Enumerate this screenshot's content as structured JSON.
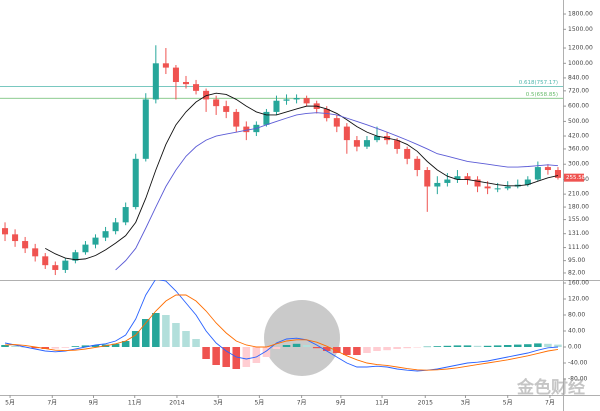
{
  "chart_data": [
    {
      "type": "candlestick",
      "open": [
        140,
        130,
        120,
        110,
        100,
        90,
        85,
        95,
        105,
        115,
        125,
        135,
        150,
        180,
        320,
        650,
        1000,
        950,
        800,
        780,
        720,
        650,
        600,
        560,
        470,
        440,
        480,
        560,
        640,
        650,
        660,
        620,
        580,
        520,
        470,
        400,
        370,
        400,
        420,
        400,
        360,
        320,
        280,
        230,
        240,
        250,
        260,
        250,
        230,
        225,
        225,
        230,
        235,
        250,
        290,
        280
      ],
      "high": [
        150,
        138,
        126,
        116,
        104,
        94,
        98,
        108,
        120,
        130,
        142,
        158,
        190,
        340,
        700,
        1240,
        1200,
        980,
        860,
        820,
        740,
        680,
        640,
        580,
        500,
        500,
        580,
        680,
        690,
        690,
        680,
        640,
        600,
        540,
        490,
        420,
        420,
        470,
        440,
        410,
        370,
        330,
        290,
        260,
        270,
        280,
        270,
        260,
        245,
        240,
        245,
        250,
        260,
        310,
        300,
        290
      ],
      "low": [
        120,
        112,
        104,
        94,
        86,
        80,
        82,
        92,
        102,
        110,
        120,
        130,
        145,
        175,
        310,
        620,
        880,
        650,
        740,
        690,
        560,
        540,
        520,
        440,
        400,
        420,
        470,
        540,
        610,
        620,
        600,
        550,
        500,
        440,
        340,
        350,
        360,
        390,
        380,
        340,
        300,
        260,
        170,
        210,
        230,
        240,
        235,
        215,
        210,
        215,
        220,
        225,
        230,
        245,
        265,
        250
      ],
      "close": [
        130,
        120,
        110,
        100,
        90,
        85,
        95,
        105,
        115,
        125,
        135,
        150,
        180,
        320,
        650,
        1000,
        950,
        800,
        780,
        720,
        650,
        600,
        560,
        470,
        440,
        480,
        560,
        640,
        650,
        660,
        620,
        580,
        520,
        470,
        400,
        370,
        400,
        420,
        400,
        360,
        320,
        280,
        230,
        240,
        250,
        260,
        250,
        230,
        225,
        225,
        230,
        235,
        250,
        290,
        280,
        255
      ],
      "up_color": "#26a69a",
      "down_color": "#ef5350",
      "series": [
        {
          "color": "#111111",
          "values": [
            null,
            null,
            null,
            null,
            110,
            103,
            98,
            96,
            97,
            101,
            108,
            117,
            128,
            150,
            200,
            280,
            380,
            480,
            560,
            630,
            680,
            700,
            690,
            650,
            600,
            560,
            540,
            540,
            560,
            580,
            600,
            600,
            580,
            550,
            510,
            470,
            440,
            420,
            410,
            400,
            380,
            350,
            310,
            280,
            260,
            250,
            250,
            245,
            240,
            235,
            232,
            232,
            235,
            245,
            255,
            262
          ]
        },
        {
          "color": "#5b5bd6",
          "values": [
            null,
            null,
            null,
            null,
            null,
            null,
            null,
            null,
            null,
            null,
            null,
            85,
            95,
            110,
            140,
            180,
            230,
            280,
            330,
            370,
            400,
            420,
            430,
            440,
            450,
            460,
            480,
            500,
            520,
            540,
            550,
            555,
            550,
            540,
            520,
            500,
            480,
            460,
            440,
            420,
            400,
            380,
            360,
            340,
            330,
            320,
            310,
            305,
            300,
            295,
            290,
            290,
            292,
            295,
            298,
            295
          ]
        }
      ],
      "levels": [
        {
          "label": "0.618(757.17)",
          "value": 757.17,
          "color": "#4db6ac"
        },
        {
          "label": "0.5(658.85)",
          "value": 658.85,
          "color": "#66bb6a"
        }
      ],
      "last_price": 255.58,
      "log_scale": true,
      "xlim": [
        -0.5,
        55.5
      ],
      "ylim": [
        75.4,
        2128
      ],
      "yticks": [
        {
          "value": 1800,
          "label": "1800.00"
        },
        {
          "value": 1500,
          "label": "1500.00"
        },
        {
          "value": 1200,
          "label": "1200.00"
        },
        {
          "value": 1000,
          "label": "1000.00"
        },
        {
          "value": 840,
          "label": "840.00"
        },
        {
          "value": 720,
          "label": "720.00"
        },
        {
          "value": 600,
          "label": "600.00"
        },
        {
          "value": 500,
          "label": "500.00"
        },
        {
          "value": 420,
          "label": "420.00"
        },
        {
          "value": 360,
          "label": "360.00"
        },
        {
          "value": 300,
          "label": "300.00"
        },
        {
          "value": 250,
          "label": "250.00"
        },
        {
          "value": 210,
          "label": "210.00"
        },
        {
          "value": 180,
          "label": "180.00"
        },
        {
          "value": 155,
          "label": "155.00"
        },
        {
          "value": 131,
          "label": "131.00"
        },
        {
          "value": 111,
          "label": "111.00"
        },
        {
          "value": 95,
          "label": "95.00"
        },
        {
          "value": 82,
          "label": "82.00"
        }
      ]
    },
    {
      "type": "macd",
      "histogram": [
        5,
        3,
        0,
        -3,
        -5,
        -4,
        -2,
        2,
        4,
        5,
        6,
        8,
        15,
        40,
        70,
        85,
        80,
        60,
        40,
        20,
        -30,
        -45,
        -50,
        -55,
        -50,
        -40,
        -25,
        -5,
        5,
        8,
        5,
        -3,
        -10,
        -15,
        -20,
        -20,
        -15,
        -10,
        -8,
        -5,
        -3,
        -1,
        1,
        2,
        3,
        4,
        4,
        3,
        3,
        4,
        5,
        6,
        7,
        9,
        8,
        6
      ],
      "series": [
        {
          "color": "#2962ff",
          "values": [
            10,
            5,
            0,
            -5,
            -10,
            -12,
            -10,
            -5,
            0,
            5,
            8,
            15,
            30,
            70,
            130,
            170,
            165,
            140,
            110,
            80,
            40,
            10,
            -10,
            -25,
            -30,
            -25,
            -10,
            10,
            20,
            22,
            18,
            5,
            -10,
            -25,
            -40,
            -50,
            -50,
            -48,
            -50,
            -55,
            -58,
            -60,
            -58,
            -55,
            -50,
            -45,
            -40,
            -38,
            -35,
            -30,
            -25,
            -20,
            -15,
            -8,
            -2,
            0
          ]
        },
        {
          "color": "#ff6d00",
          "values": [
            5,
            6,
            4,
            0,
            -4,
            -8,
            -9,
            -8,
            -5,
            -1,
            3,
            8,
            15,
            30,
            60,
            90,
            115,
            130,
            130,
            115,
            90,
            60,
            35,
            15,
            5,
            0,
            0,
            8,
            15,
            18,
            18,
            12,
            2,
            -10,
            -22,
            -32,
            -40,
            -44,
            -46,
            -50,
            -54,
            -57,
            -58,
            -57,
            -55,
            -52,
            -48,
            -44,
            -40,
            -36,
            -32,
            -27,
            -22,
            -16,
            -10,
            -6
          ]
        }
      ],
      "xlim": [
        -0.5,
        55.5
      ],
      "ylim": [
        -120,
        167.5
      ],
      "yticks": [
        {
          "value": 160,
          "label": "160.00"
        },
        {
          "value": 120,
          "label": "120.00"
        },
        {
          "value": 80,
          "label": "80.00"
        },
        {
          "value": 40,
          "label": "40.00"
        },
        {
          "value": 0,
          "label": "0.00"
        },
        {
          "value": -40,
          "label": "-40.00"
        },
        {
          "value": -80,
          "label": "-80.00"
        }
      ],
      "xticks": [
        {
          "value": 0.5,
          "label": "5月"
        },
        {
          "value": 4.7,
          "label": "7月"
        },
        {
          "value": 8.8,
          "label": "9月"
        },
        {
          "value": 12.9,
          "label": "11月"
        },
        {
          "value": 17.1,
          "label": "2014"
        },
        {
          "value": 21.2,
          "label": "3月"
        },
        {
          "value": 25.3,
          "label": "5月"
        },
        {
          "value": 29.5,
          "label": "7月"
        },
        {
          "value": 33.4,
          "label": "9月"
        },
        {
          "value": 37.5,
          "label": "11月"
        },
        {
          "value": 41.8,
          "label": "2015"
        },
        {
          "value": 45.8,
          "label": "3月"
        },
        {
          "value": 50.0,
          "label": "5月"
        },
        {
          "value": 54.2,
          "label": "7月"
        }
      ]
    }
  ],
  "watermark": "金色财经"
}
